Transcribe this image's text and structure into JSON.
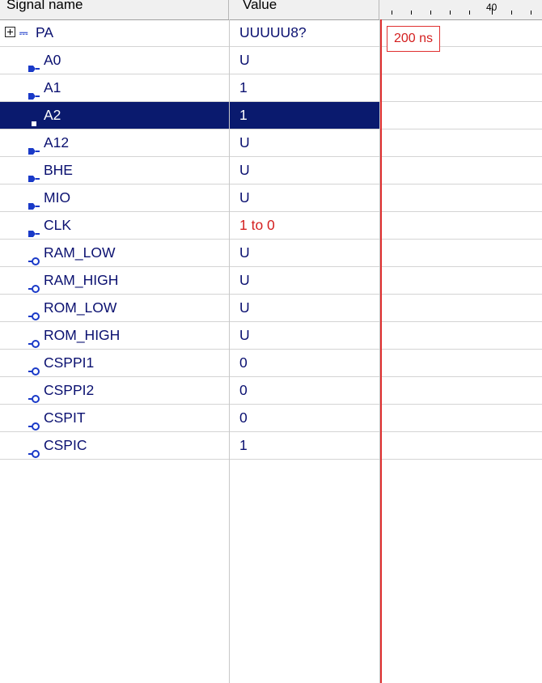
{
  "header": {
    "signal_name": "Signal name",
    "value": "Value",
    "ruler_label": "40"
  },
  "cursor": {
    "time": "200 ns"
  },
  "signals": [
    {
      "name": "PA",
      "value": "UUUUU8?",
      "kind": "bus",
      "expandable": true
    },
    {
      "name": "A0",
      "value": "U",
      "kind": "input"
    },
    {
      "name": "A1",
      "value": "1",
      "kind": "input"
    },
    {
      "name": "A2",
      "value": "1",
      "kind": "input",
      "selected": true
    },
    {
      "name": "A12",
      "value": "U",
      "kind": "input"
    },
    {
      "name": "BHE",
      "value": "U",
      "kind": "input"
    },
    {
      "name": "MIO",
      "value": "U",
      "kind": "input"
    },
    {
      "name": "CLK",
      "value": "1 to 0",
      "kind": "input",
      "changed": true
    },
    {
      "name": "RAM_LOW",
      "value": "U",
      "kind": "output"
    },
    {
      "name": "RAM_HIGH",
      "value": "U",
      "kind": "output"
    },
    {
      "name": "ROM_LOW",
      "value": "U",
      "kind": "output"
    },
    {
      "name": "ROM_HIGH",
      "value": "U",
      "kind": "output"
    },
    {
      "name": "CSPPI1",
      "value": "0",
      "kind": "output"
    },
    {
      "name": "CSPPI2",
      "value": "0",
      "kind": "output"
    },
    {
      "name": "CSPIT",
      "value": "0",
      "kind": "output"
    },
    {
      "name": "CSPIC",
      "value": "1",
      "kind": "output"
    }
  ],
  "icons": {
    "expander": "plus-box-icon",
    "bus": "bus-icon",
    "input": "input-pin-icon",
    "output": "output-pin-icon",
    "selected": "selected-pin-icon"
  },
  "colors": {
    "signal_text": "#0a1070",
    "selection": "#0a1a6e",
    "changed_value": "#d42020",
    "cursor": "#e03030"
  }
}
